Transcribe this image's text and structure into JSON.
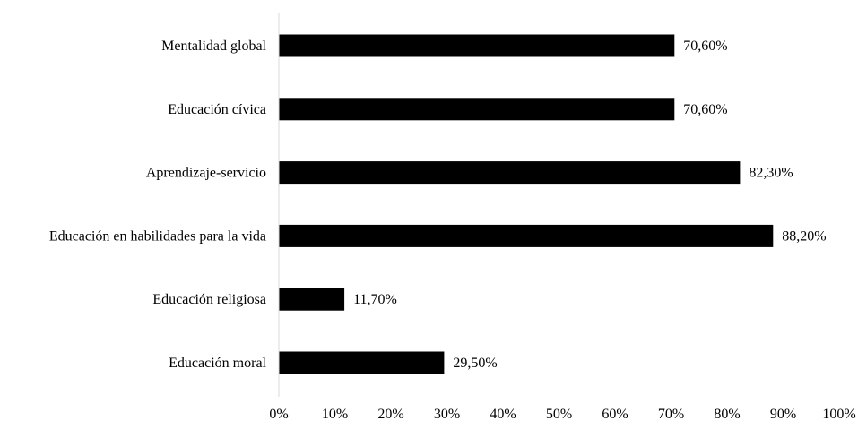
{
  "chart_data": {
    "type": "bar",
    "orientation": "horizontal",
    "categories": [
      "Mentalidad global",
      "Educación cívica",
      "Aprendizaje-servicio ",
      "Educación en habilidades para la vida",
      "Educación religiosa",
      "Educación moral"
    ],
    "values": [
      70.6,
      70.6,
      82.3,
      88.2,
      11.7,
      29.5
    ],
    "value_labels": [
      "70,60%",
      "70,60%",
      "82,30%",
      "88,20%",
      "11,70%",
      "29,50%"
    ],
    "xlim": [
      0,
      100
    ],
    "xticks": [
      0,
      10,
      20,
      30,
      40,
      50,
      60,
      70,
      80,
      90,
      100
    ],
    "xtick_labels": [
      "0%",
      "10%",
      "20%",
      "30%",
      "40%",
      "50%",
      "60%",
      "70%",
      "80%",
      "90%",
      "100%"
    ],
    "bar_color": "#000000",
    "axis_color": "#d9d9d9",
    "grid": false,
    "legend": "none",
    "title": "",
    "xlabel": "",
    "ylabel": ""
  }
}
